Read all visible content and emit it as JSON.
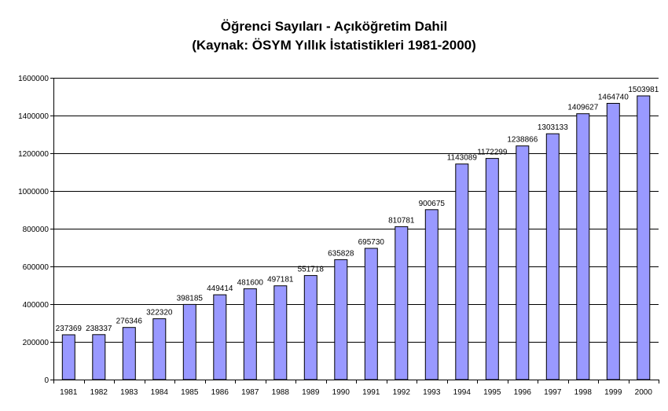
{
  "chart_data": {
    "type": "bar",
    "title": "Öğrenci Sayıları - Açıköğretim Dahil",
    "subtitle": "(Kaynak: ÖSYM Yıllık İstatistikleri 1981-2000)",
    "categories": [
      "1981",
      "1982",
      "1983",
      "1984",
      "1985",
      "1986",
      "1987",
      "1988",
      "1989",
      "1990",
      "1991",
      "1992",
      "1993",
      "1994",
      "1995",
      "1996",
      "1997",
      "1998",
      "1999",
      "2000"
    ],
    "values": [
      237369,
      238337,
      276346,
      322320,
      398185,
      449414,
      481600,
      497181,
      551718,
      635828,
      695730,
      810781,
      900675,
      1143089,
      1172299,
      1238866,
      1303133,
      1409627,
      1464740,
      1503981
    ],
    "data_labels": [
      "237369",
      "238337",
      "276346",
      "322320",
      "398185",
      "449414",
      "481600",
      "497181",
      "551718",
      "635828",
      "695730",
      "810781",
      "900675",
      "1143089",
      "1172299",
      "1238866",
      "1303133",
      "1409627",
      "1464740",
      "1503981"
    ],
    "ylim": [
      0,
      1600000
    ],
    "yticks": [
      0,
      200000,
      400000,
      600000,
      800000,
      1000000,
      1200000,
      1400000,
      1600000
    ],
    "ytick_labels": [
      "0",
      "200000",
      "400000",
      "600000",
      "800000",
      "1000000",
      "1200000",
      "1400000",
      "1600000"
    ],
    "xlabel": "",
    "ylabel": "",
    "grid": true,
    "legend": "none",
    "colors": {
      "bar": "#9999ff",
      "bar_edge": "#000000",
      "grid": "#000000",
      "background": "#ffffff"
    }
  }
}
